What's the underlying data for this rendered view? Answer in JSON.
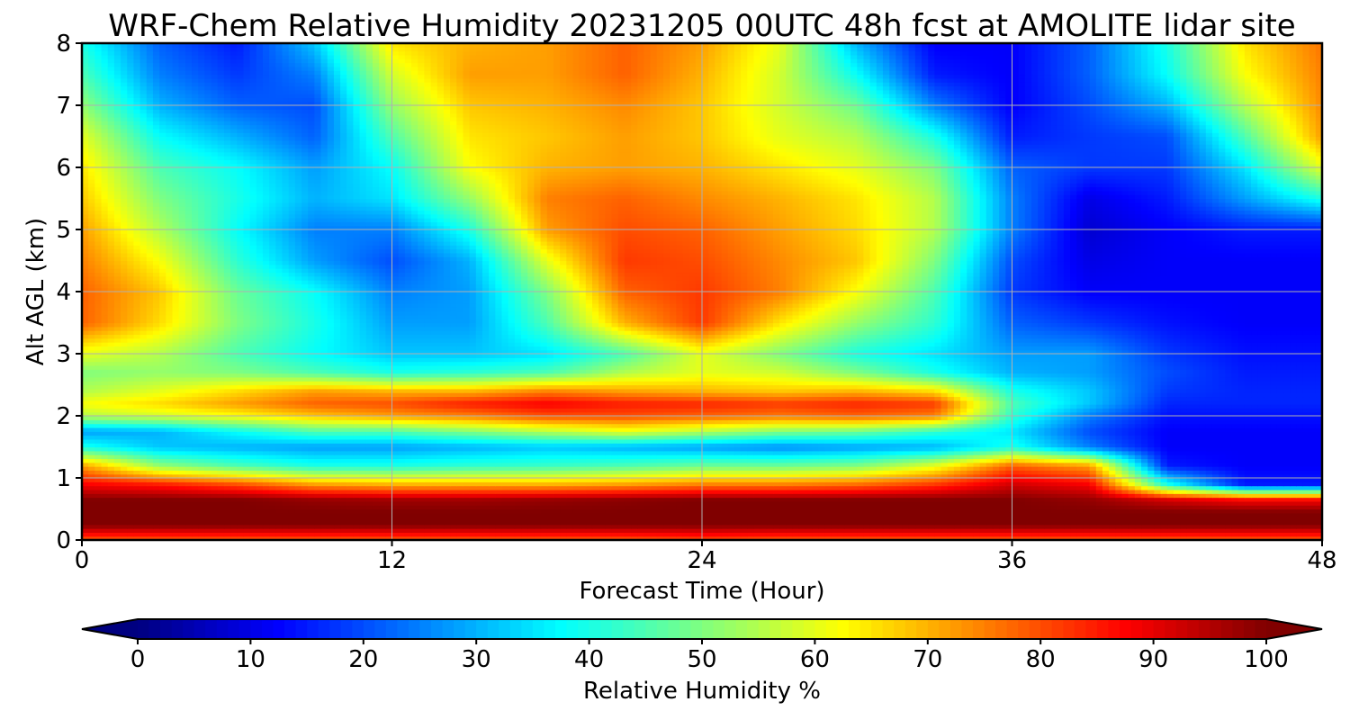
{
  "chart_data": {
    "type": "heatmap",
    "subtype": "filled-contour time-height cross-section",
    "title": "WRF-Chem Relative Humidity 20231205 00UTC 48h fcst at AMOLITE lidar site",
    "xlabel": "Forecast Time (Hour)",
    "ylabel": "Alt AGL (km)",
    "xlim": [
      0,
      48
    ],
    "ylim": [
      0,
      8
    ],
    "xticks": [
      "0",
      "12",
      "24",
      "36",
      "48"
    ],
    "yticks": [
      "0",
      "1",
      "2",
      "3",
      "4",
      "5",
      "6",
      "7",
      "8"
    ],
    "grid": true,
    "colormap": "jet",
    "colorbar": {
      "label": "Relative Humidity %",
      "ticks": [
        "0",
        "10",
        "20",
        "30",
        "40",
        "50",
        "60",
        "70",
        "80",
        "90",
        "100"
      ],
      "range": [
        0,
        100
      ],
      "orientation": "horizontal",
      "location": "bottom",
      "extend": "both"
    },
    "x": [
      0,
      3,
      6,
      9,
      12,
      15,
      18,
      21,
      24,
      27,
      30,
      33,
      36,
      39,
      42,
      45,
      48
    ],
    "y": [
      0,
      0.1,
      0.25,
      0.45,
      0.65,
      0.9,
      1.2,
      1.5,
      1.75,
      2.0,
      2.2,
      2.4,
      2.7,
      3.0,
      3.5,
      4.0,
      4.5,
      5.0,
      5.5,
      6.0,
      6.5,
      7.0,
      7.5,
      8.0
    ],
    "rows": [
      [
        78,
        78,
        78,
        78,
        78,
        78,
        78,
        78,
        80,
        78,
        78,
        78,
        78,
        78,
        78,
        78,
        78
      ],
      [
        87,
        87,
        87,
        87,
        87,
        87,
        87,
        87,
        88,
        87,
        87,
        87,
        87,
        87,
        87,
        87,
        87
      ],
      [
        100,
        100,
        100,
        100,
        100,
        100,
        100,
        100,
        100,
        100,
        100,
        100,
        100,
        100,
        100,
        100,
        100
      ],
      [
        100,
        100,
        100,
        100,
        100,
        100,
        100,
        100,
        100,
        100,
        100,
        100,
        100,
        100,
        100,
        100,
        100
      ],
      [
        100,
        100,
        100,
        98,
        97,
        97,
        98,
        99,
        100,
        100,
        100,
        100,
        100,
        98,
        92,
        88,
        88
      ],
      [
        88,
        85,
        80,
        72,
        70,
        70,
        70,
        72,
        75,
        75,
        77,
        82,
        92,
        88,
        40,
        15,
        15
      ],
      [
        72,
        52,
        45,
        40,
        40,
        42,
        43,
        45,
        48,
        48,
        50,
        60,
        78,
        72,
        15,
        12,
        12
      ],
      [
        40,
        32,
        30,
        28,
        28,
        30,
        32,
        30,
        28,
        26,
        28,
        30,
        40,
        25,
        12,
        12,
        12
      ],
      [
        28,
        30,
        38,
        45,
        45,
        50,
        55,
        60,
        55,
        50,
        48,
        42,
        35,
        20,
        12,
        12,
        12
      ],
      [
        55,
        58,
        62,
        68,
        72,
        75,
        80,
        80,
        78,
        76,
        78,
        75,
        42,
        25,
        14,
        14,
        14
      ],
      [
        62,
        66,
        72,
        78,
        80,
        85,
        88,
        85,
        84,
        82,
        84,
        82,
        45,
        32,
        16,
        16,
        16
      ],
      [
        55,
        60,
        66,
        72,
        70,
        70,
        75,
        72,
        70,
        68,
        70,
        66,
        40,
        32,
        18,
        16,
        16
      ],
      [
        50,
        52,
        50,
        45,
        40,
        42,
        45,
        55,
        60,
        58,
        50,
        40,
        30,
        28,
        20,
        15,
        15
      ],
      [
        60,
        55,
        45,
        38,
        32,
        32,
        35,
        45,
        60,
        50,
        40,
        35,
        28,
        28,
        18,
        14,
        14
      ],
      [
        78,
        66,
        50,
        40,
        28,
        28,
        45,
        70,
        82,
        65,
        52,
        42,
        22,
        18,
        14,
        12,
        12
      ],
      [
        78,
        68,
        48,
        38,
        25,
        28,
        50,
        78,
        82,
        75,
        62,
        45,
        18,
        12,
        12,
        12,
        12
      ],
      [
        75,
        62,
        42,
        28,
        20,
        30,
        60,
        82,
        80,
        74,
        68,
        50,
        20,
        10,
        12,
        12,
        12
      ],
      [
        72,
        55,
        38,
        25,
        25,
        40,
        72,
        80,
        78,
        72,
        66,
        55,
        25,
        8,
        12,
        15,
        15
      ],
      [
        68,
        50,
        40,
        30,
        35,
        52,
        75,
        78,
        74,
        70,
        65,
        55,
        25,
        10,
        15,
        28,
        40
      ],
      [
        65,
        45,
        38,
        28,
        38,
        62,
        70,
        72,
        70,
        65,
        60,
        50,
        22,
        18,
        18,
        35,
        60
      ],
      [
        60,
        38,
        30,
        22,
        45,
        65,
        68,
        72,
        68,
        60,
        55,
        40,
        15,
        18,
        20,
        45,
        72
      ],
      [
        52,
        30,
        22,
        20,
        52,
        68,
        70,
        74,
        68,
        58,
        48,
        25,
        12,
        20,
        30,
        55,
        74
      ],
      [
        45,
        25,
        18,
        25,
        58,
        72,
        72,
        78,
        70,
        58,
        38,
        15,
        12,
        22,
        38,
        62,
        75
      ],
      [
        40,
        22,
        15,
        32,
        65,
        70,
        72,
        78,
        72,
        60,
        30,
        12,
        12,
        22,
        40,
        65,
        76
      ]
    ]
  }
}
